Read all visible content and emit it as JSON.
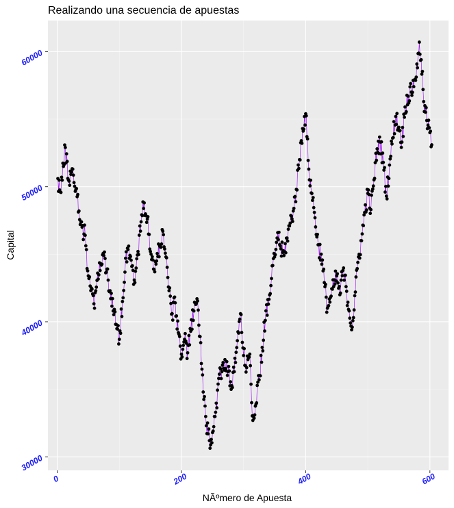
{
  "chart_data": {
    "type": "line",
    "title": "Realizando una secuencia de apuestas",
    "xlabel": "NÃºmero de Apuesta",
    "ylabel": "Capital",
    "xlim": [
      -15,
      630
    ],
    "ylim": [
      29000,
      62300
    ],
    "x_ticks": [
      0,
      200,
      400,
      600
    ],
    "y_ticks": [
      30000,
      40000,
      50000,
      60000
    ],
    "x_tick_labels": [
      "0",
      "200",
      "400",
      "600"
    ],
    "y_tick_labels": [
      "30000",
      "40000",
      "50000",
      "60000"
    ],
    "grid": true,
    "legend": "none",
    "series": [
      {
        "x": [
          1,
          5,
          10,
          13,
          18,
          25,
          30,
          35,
          40,
          45,
          50,
          55,
          60,
          65,
          70,
          75,
          80,
          85,
          90,
          95,
          100,
          105,
          110,
          115,
          120,
          125,
          130,
          135,
          140,
          145,
          150,
          155,
          160,
          165,
          170,
          175,
          180,
          185,
          190,
          195,
          200,
          205,
          210,
          215,
          220,
          225,
          230,
          235,
          240,
          245,
          250,
          255,
          260,
          265,
          270,
          275,
          280,
          285,
          290,
          295,
          300,
          305,
          310,
          315,
          320,
          325,
          330,
          335,
          340,
          345,
          350,
          355,
          360,
          365,
          370,
          375,
          380,
          385,
          390,
          395,
          400,
          405,
          410,
          415,
          420,
          425,
          430,
          435,
          440,
          445,
          450,
          455,
          460,
          465,
          470,
          475,
          480,
          485,
          490,
          495,
          500,
          505,
          510,
          515,
          520,
          525,
          530,
          535,
          540,
          545,
          550,
          555,
          560,
          565,
          570,
          575,
          580,
          583,
          586,
          590,
          595,
          600,
          603
        ],
        "values": [
          50600,
          49600,
          51500,
          52900,
          50500,
          51300,
          49800,
          48200,
          47000,
          46400,
          43400,
          42500,
          41000,
          43600,
          44300,
          44900,
          43900,
          42300,
          40800,
          39800,
          38700,
          41500,
          44700,
          45600,
          44100,
          42900,
          45200,
          47400,
          48800,
          47600,
          45200,
          43900,
          44500,
          45600,
          46700,
          44800,
          42300,
          40600,
          41400,
          39200,
          37600,
          38700,
          37700,
          39300,
          40800,
          41700,
          38900,
          34800,
          32300,
          31200,
          31800,
          33300,
          35800,
          36300,
          37200,
          36300,
          35000,
          36300,
          38600,
          40600,
          37500,
          36600,
          37600,
          32700,
          33900,
          35700,
          38100,
          40100,
          41300,
          43200,
          44800,
          46600,
          45400,
          44900,
          46200,
          47300,
          48200,
          49800,
          52000,
          54300,
          55400,
          51300,
          49500,
          47700,
          45700,
          45000,
          42900,
          41000,
          41800,
          42600,
          43400,
          42000,
          43800,
          42600,
          40800,
          39600,
          42200,
          44800,
          46000,
          48100,
          49500,
          48300,
          50500,
          52800,
          53300,
          51800,
          49300,
          51600,
          53600,
          55200,
          54400,
          53300,
          55900,
          56700,
          57000,
          57900,
          58800,
          60700,
          59400,
          56300,
          54900,
          54000,
          53100
        ]
      }
    ]
  },
  "colors": {
    "panel_background": "#ebebeb",
    "grid_major": "#ffffff",
    "grid_minor": "#f5f5f5",
    "line": "#a020f0",
    "point": "#000000",
    "tick_label": "#1a1aff",
    "axis_tick": "#333333"
  }
}
